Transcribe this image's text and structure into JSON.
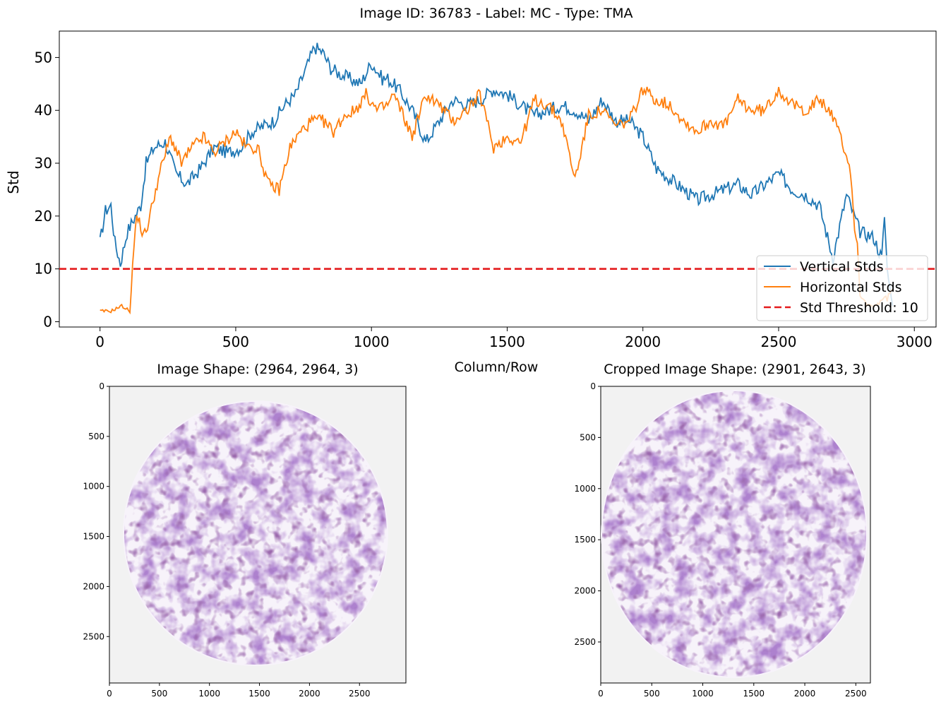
{
  "figure": {
    "suptitle": "Image ID: 36783 - Label: MC - Type: TMA"
  },
  "colors": {
    "vertical": "#1f77b4",
    "horizontal": "#ff7f0e",
    "threshold": "#e41a1c",
    "image_background": "#f2f2f2",
    "tissue_light": "#cbb2dc",
    "tissue_mid": "#9a6bbd",
    "tissue_dark": "#5e2e73"
  },
  "chart_data": [
    {
      "type": "line",
      "title": "",
      "xlabel": "Column/Row",
      "ylabel": "Std",
      "xlim": [
        -150,
        3080
      ],
      "ylim": [
        -1,
        55
      ],
      "xticks": [
        0,
        500,
        1000,
        1500,
        2000,
        2500,
        3000
      ],
      "yticks": [
        0,
        10,
        20,
        30,
        40,
        50
      ],
      "grid": false,
      "legend": "lower right",
      "series": [
        {
          "name": "Vertical Stds",
          "color": "#1f77b4",
          "x": [
            0,
            20,
            40,
            55,
            75,
            100,
            130,
            150,
            170,
            200,
            240,
            280,
            320,
            370,
            420,
            470,
            520,
            560,
            600,
            640,
            680,
            720,
            760,
            790,
            820,
            850,
            880,
            920,
            960,
            1000,
            1040,
            1060,
            1100,
            1150,
            1200,
            1250,
            1300,
            1350,
            1400,
            1450,
            1500,
            1550,
            1600,
            1650,
            1700,
            1750,
            1800,
            1850,
            1900,
            1950,
            2000,
            2050,
            2100,
            2150,
            2200,
            2250,
            2300,
            2350,
            2400,
            2450,
            2500,
            2550,
            2600,
            2650,
            2700,
            2750,
            2800,
            2850,
            2880,
            2890,
            2900,
            2920
          ],
          "y": [
            15,
            21,
            22,
            15,
            11,
            17,
            20,
            22,
            30,
            33,
            34,
            28,
            26,
            29,
            33,
            32,
            33,
            36,
            37,
            38,
            41,
            43,
            48,
            52,
            51,
            48,
            47,
            46,
            45,
            49,
            46,
            46,
            44,
            40,
            34,
            38,
            42,
            41,
            42,
            44,
            43,
            41,
            39,
            40,
            41,
            40,
            38,
            42,
            38,
            38,
            35,
            29,
            27,
            25,
            23,
            24,
            25,
            26,
            24,
            26,
            28,
            25,
            24,
            22,
            12,
            24,
            17,
            16,
            12,
            20,
            10,
            3
          ]
        },
        {
          "name": "Horizontal Stds",
          "color": "#ff7f0e",
          "x": [
            0,
            40,
            80,
            110,
            120,
            130,
            140,
            160,
            180,
            200,
            230,
            260,
            300,
            340,
            380,
            420,
            460,
            500,
            540,
            580,
            620,
            660,
            700,
            740,
            780,
            820,
            860,
            900,
            940,
            980,
            1020,
            1060,
            1080,
            1100,
            1150,
            1200,
            1250,
            1300,
            1350,
            1400,
            1450,
            1500,
            1550,
            1600,
            1650,
            1700,
            1750,
            1800,
            1850,
            1900,
            1950,
            2000,
            2050,
            2100,
            2150,
            2200,
            2250,
            2300,
            2350,
            2400,
            2450,
            2500,
            2550,
            2600,
            2650,
            2700,
            2740,
            2760,
            2770,
            2780,
            2790,
            2800,
            2830,
            2860,
            2880,
            2900,
            2920
          ],
          "y": [
            2,
            2,
            3,
            2,
            10,
            18,
            20,
            16,
            19,
            24,
            30,
            35,
            30,
            33,
            35,
            32,
            34,
            36,
            33,
            33,
            26,
            25,
            33,
            36,
            38,
            38,
            36,
            39,
            40,
            43,
            40,
            41,
            43,
            41,
            35,
            43,
            41,
            38,
            40,
            43,
            33,
            35,
            34,
            42,
            41,
            38,
            27,
            39,
            40,
            37,
            38,
            44,
            42,
            41,
            38,
            36,
            38,
            37,
            42,
            40,
            40,
            44,
            41,
            40,
            42,
            39,
            33,
            30,
            25,
            18,
            14,
            5,
            3,
            3,
            4,
            5,
            6
          ]
        },
        {
          "name": "Std Threshold: 10",
          "color": "#e41a1c",
          "style": "dashed",
          "x": [
            -150,
            3080
          ],
          "y": [
            10,
            10
          ]
        }
      ]
    },
    {
      "type": "image",
      "title": "Image Shape: (2964, 2964, 3)",
      "width": 2964,
      "height": 2964,
      "xticks": [
        0,
        500,
        1000,
        1500,
        2000,
        2500
      ],
      "yticks": [
        0,
        500,
        1000,
        1500,
        2000,
        2500
      ]
    },
    {
      "type": "image",
      "title": "Cropped Image Shape: (2901, 2643, 3)",
      "width": 2643,
      "height": 2901,
      "xticks": [
        0,
        500,
        1000,
        1500,
        2000,
        2500
      ],
      "yticks": [
        0,
        500,
        1000,
        1500,
        2000,
        2500
      ]
    }
  ]
}
